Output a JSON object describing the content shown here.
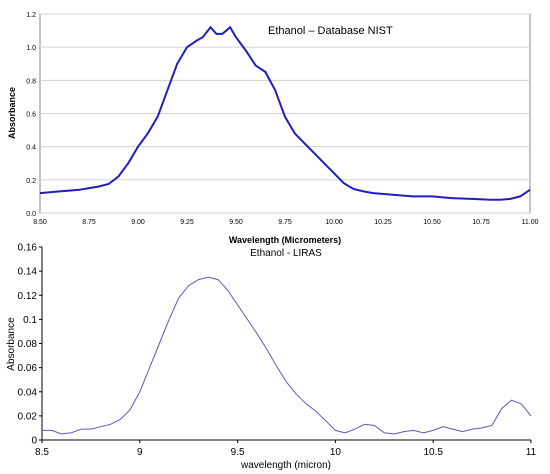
{
  "chart_data": [
    {
      "type": "line",
      "title": "Ethanol – Database NIST",
      "xlabel": "Wavelength (Micrometers)",
      "ylabel": "Absorbance",
      "xlim": [
        8.5,
        11.0
      ],
      "ylim": [
        0,
        1.2
      ],
      "xticks": [
        "8.50",
        "8.75",
        "9.00",
        "9.25",
        "9.50",
        "9.75",
        "10.00",
        "10.25",
        "10.50",
        "10.75",
        "11.00"
      ],
      "yticks": [
        "0.0",
        "0.2",
        "0.4",
        "0.6",
        "0.8",
        "1.0",
        "1.2"
      ],
      "grid": "horizontal",
      "line_color": "#1f1fbf",
      "x": [
        8.5,
        8.55,
        8.6,
        8.65,
        8.7,
        8.75,
        8.8,
        8.85,
        8.9,
        8.95,
        9.0,
        9.05,
        9.1,
        9.15,
        9.2,
        9.25,
        9.3,
        9.33,
        9.37,
        9.4,
        9.43,
        9.47,
        9.5,
        9.55,
        9.6,
        9.65,
        9.7,
        9.75,
        9.8,
        9.85,
        9.9,
        9.95,
        10.0,
        10.05,
        10.1,
        10.15,
        10.2,
        10.3,
        10.4,
        10.5,
        10.6,
        10.7,
        10.8,
        10.85,
        10.9,
        10.95,
        11.0
      ],
      "y": [
        0.12,
        0.125,
        0.13,
        0.135,
        0.14,
        0.15,
        0.16,
        0.175,
        0.22,
        0.3,
        0.4,
        0.48,
        0.58,
        0.74,
        0.9,
        1.0,
        1.04,
        1.06,
        1.12,
        1.08,
        1.08,
        1.12,
        1.06,
        0.98,
        0.89,
        0.85,
        0.74,
        0.58,
        0.48,
        0.42,
        0.36,
        0.3,
        0.24,
        0.18,
        0.145,
        0.13,
        0.12,
        0.11,
        0.1,
        0.1,
        0.09,
        0.085,
        0.08,
        0.08,
        0.085,
        0.1,
        0.14
      ]
    },
    {
      "type": "line",
      "title": "Ethanol - LIRAS",
      "xlabel": "wavelength (micron)",
      "ylabel": "Absorbance",
      "xlim": [
        8.5,
        11
      ],
      "ylim": [
        0,
        0.16
      ],
      "xticks": [
        "8.5",
        "9",
        "9.5",
        "10",
        "10.5",
        "11"
      ],
      "yticks": [
        "0",
        "0.02",
        "0.04",
        "0.06",
        "0.08",
        "0.1",
        "0.12",
        "0.14",
        "0.16"
      ],
      "grid": "none",
      "line_color": "#5a5ab8",
      "x": [
        8.5,
        8.55,
        8.6,
        8.65,
        8.7,
        8.75,
        8.8,
        8.85,
        8.9,
        8.95,
        9.0,
        9.05,
        9.1,
        9.15,
        9.2,
        9.25,
        9.3,
        9.35,
        9.4,
        9.45,
        9.5,
        9.55,
        9.6,
        9.65,
        9.7,
        9.75,
        9.8,
        9.85,
        9.9,
        9.95,
        10.0,
        10.05,
        10.1,
        10.15,
        10.2,
        10.25,
        10.3,
        10.35,
        10.4,
        10.45,
        10.5,
        10.55,
        10.6,
        10.65,
        10.7,
        10.75,
        10.8,
        10.85,
        10.9,
        10.95,
        11.0
      ],
      "y": [
        0.008,
        0.008,
        0.005,
        0.006,
        0.009,
        0.009,
        0.011,
        0.013,
        0.017,
        0.025,
        0.04,
        0.06,
        0.08,
        0.1,
        0.118,
        0.128,
        0.133,
        0.135,
        0.133,
        0.124,
        0.112,
        0.1,
        0.088,
        0.075,
        0.061,
        0.048,
        0.038,
        0.03,
        0.024,
        0.016,
        0.008,
        0.006,
        0.009,
        0.013,
        0.012,
        0.006,
        0.005,
        0.007,
        0.008,
        0.006,
        0.008,
        0.011,
        0.009,
        0.007,
        0.009,
        0.01,
        0.012,
        0.026,
        0.033,
        0.03,
        0.02
      ]
    }
  ]
}
